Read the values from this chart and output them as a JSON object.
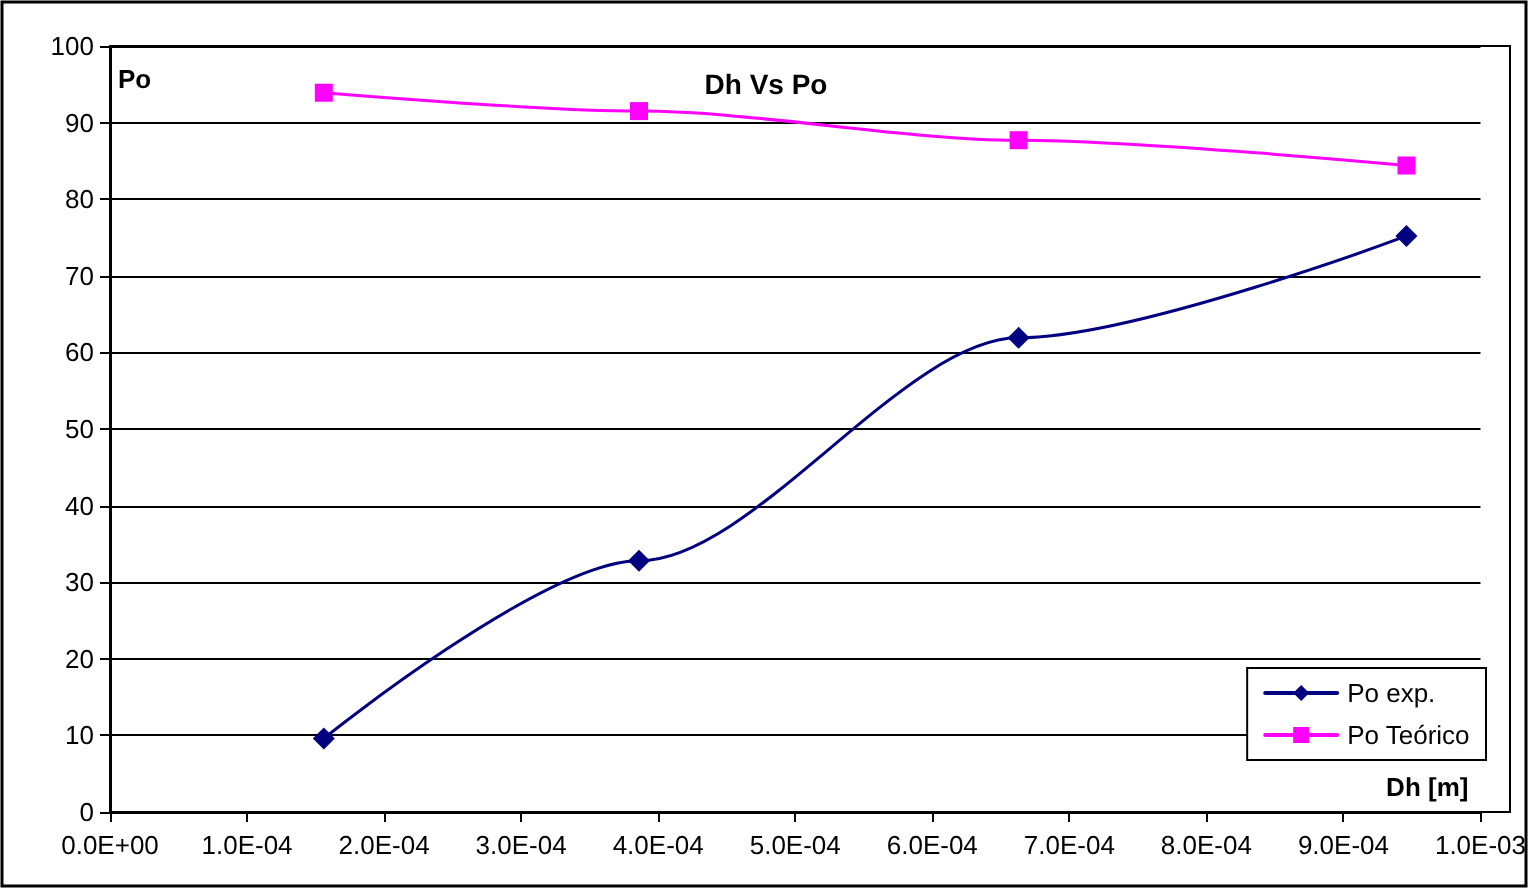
{
  "chart_data": {
    "type": "line",
    "title": "Dh Vs Po",
    "xlabel": "Dh [m]",
    "ylabel": "Po",
    "series": [
      {
        "name": "Po exp.",
        "color": "#000080",
        "marker": "diamond",
        "x": [
          0.000156,
          0.000386,
          0.000663,
          0.000946
        ],
        "values": [
          9.6,
          32.8,
          61.9,
          75.2
        ]
      },
      {
        "name": "Po Teórico",
        "color": "#ff00ff",
        "marker": "square",
        "x": [
          0.000156,
          0.000386,
          0.000663,
          0.000946
        ],
        "values": [
          93.9,
          91.5,
          87.7,
          84.4
        ]
      }
    ],
    "xlim": [
      0,
      0.001
    ],
    "xticks": [
      {
        "value": 0,
        "label": "0.0E+00"
      },
      {
        "value": 0.0001,
        "label": "1.0E-04"
      },
      {
        "value": 0.0002,
        "label": "2.0E-04"
      },
      {
        "value": 0.0003,
        "label": "3.0E-04"
      },
      {
        "value": 0.0004,
        "label": "4.0E-04"
      },
      {
        "value": 0.0005,
        "label": "5.0E-04"
      },
      {
        "value": 0.0006,
        "label": "6.0E-04"
      },
      {
        "value": 0.0007,
        "label": "7.0E-04"
      },
      {
        "value": 0.0008,
        "label": "8.0E-04"
      },
      {
        "value": 0.0009,
        "label": "9.0E-04"
      },
      {
        "value": 0.001,
        "label": "1.0E-03"
      }
    ],
    "ylim": [
      0,
      100
    ],
    "yticks": [
      0,
      10,
      20,
      30,
      40,
      50,
      60,
      70,
      80,
      90,
      100
    ],
    "grid": "y",
    "legend": "bottom right",
    "line_style": "solid"
  }
}
